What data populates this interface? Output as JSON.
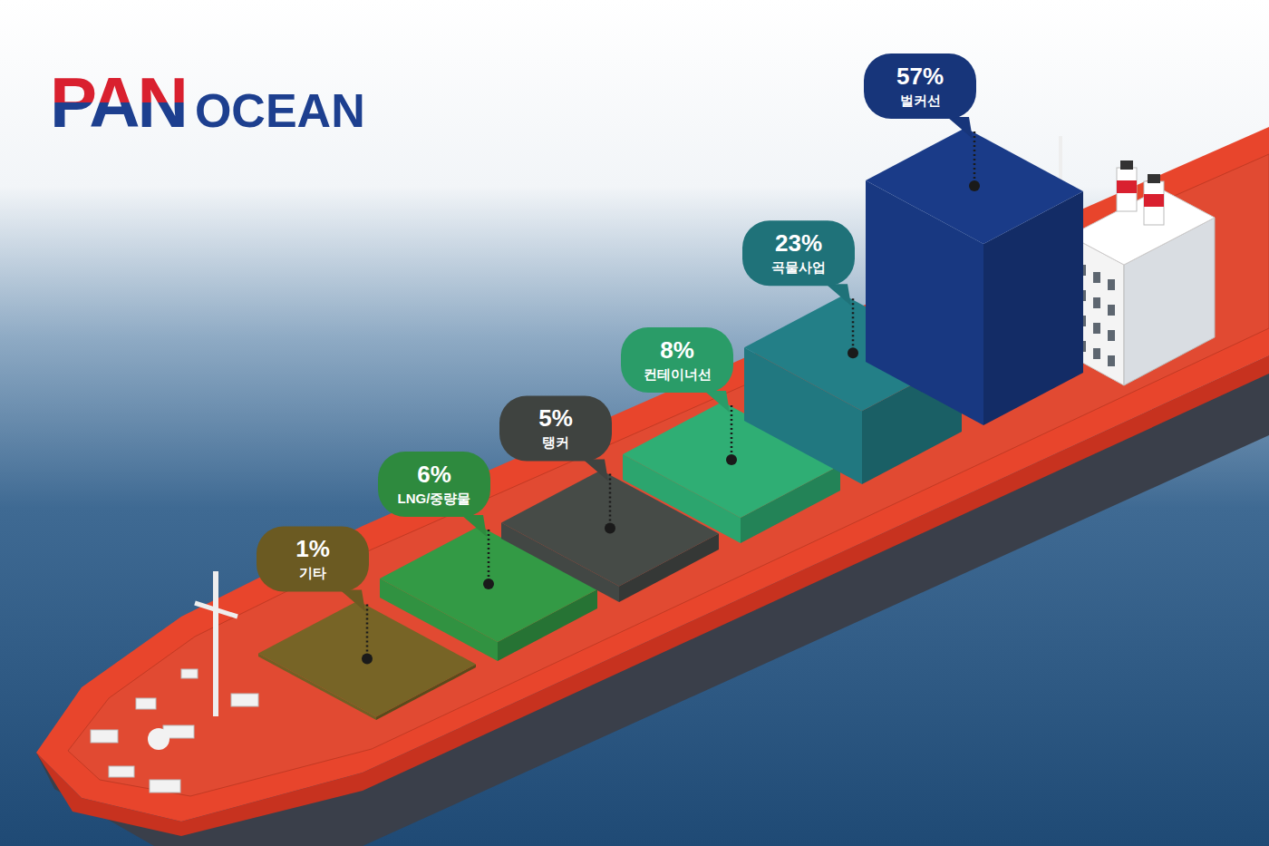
{
  "chart_data": {
    "type": "bar",
    "title": "PAN OCEAN",
    "categories": [
      "기타",
      "LNG/중량물",
      "탱커",
      "컨테이너선",
      "곡물사업",
      "벌커선"
    ],
    "values": [
      1,
      6,
      5,
      8,
      23,
      57
    ],
    "value_labels": [
      "1%",
      "6%",
      "5%",
      "8%",
      "23%",
      "57%"
    ],
    "colors": [
      "#6b5a22",
      "#2e8a3e",
      "#3f4340",
      "#2a9c68",
      "#1f7279",
      "#17357a"
    ],
    "data_labels": true,
    "tick_labels": false
  }
}
